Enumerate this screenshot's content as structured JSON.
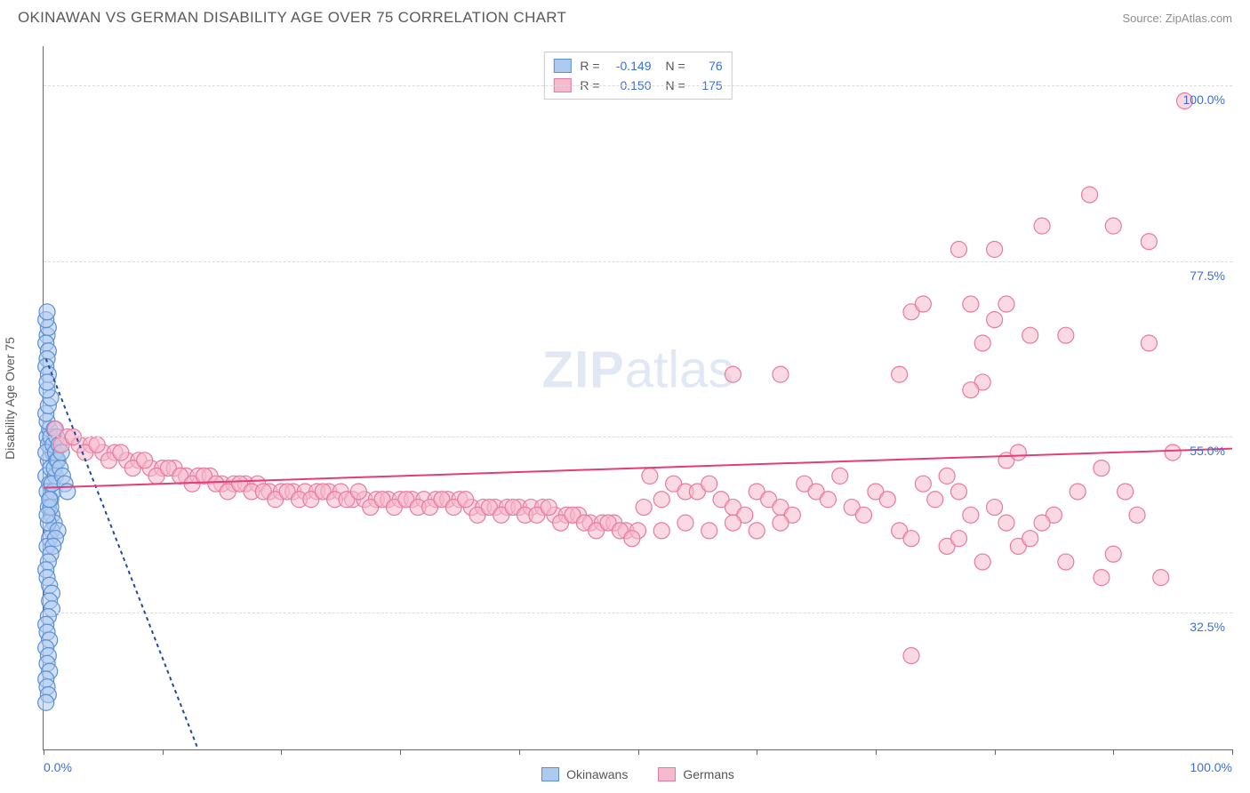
{
  "header": {
    "title": "OKINAWAN VS GERMAN DISABILITY AGE OVER 75 CORRELATION CHART",
    "source": "Source: ZipAtlas.com"
  },
  "watermark": {
    "text_a": "ZIP",
    "text_b": "atlas"
  },
  "chart": {
    "type": "scatter",
    "y_axis_label": "Disability Age Over 75",
    "background_color": "#ffffff",
    "grid_color": "#d9dadb",
    "axis_color": "#666666",
    "tick_label_color": "#3b6fd6",
    "xlim": [
      0,
      100
    ],
    "ylim": [
      15,
      105
    ],
    "x_ticks": [
      0,
      10,
      20,
      30,
      40,
      50,
      60,
      70,
      80,
      90,
      100
    ],
    "x_tick_labels": {
      "0": "0.0%",
      "100": "100.0%"
    },
    "y_gridlines": [
      32.5,
      55.0,
      77.5,
      100.0
    ],
    "y_tick_labels": [
      "32.5%",
      "55.0%",
      "77.5%",
      "100.0%"
    ],
    "marker_radius": 9,
    "marker_stroke_width": 1.2,
    "trend_line_width": 2,
    "series": [
      {
        "name": "Okinawans",
        "fill_color": "#aecbef",
        "stroke_color": "#5a8fd6",
        "fill_opacity": 0.55,
        "trend_color": "#1e4b9e",
        "trend_dash": "4 4",
        "trend": {
          "x1": 0.2,
          "y1": 65,
          "x2": 13,
          "y2": 15
        },
        "points": [
          [
            0.3,
            55
          ],
          [
            0.4,
            52
          ],
          [
            0.2,
            50
          ],
          [
            0.5,
            49
          ],
          [
            0.3,
            48
          ],
          [
            0.6,
            47
          ],
          [
            0.4,
            46
          ],
          [
            0.7,
            45
          ],
          [
            0.5,
            56
          ],
          [
            0.3,
            57
          ],
          [
            0.8,
            53
          ],
          [
            0.6,
            51
          ],
          [
            0.4,
            54
          ],
          [
            0.2,
            53
          ],
          [
            0.9,
            44
          ],
          [
            0.7,
            43
          ],
          [
            0.5,
            42
          ],
          [
            0.3,
            41
          ],
          [
            1.0,
            50
          ],
          [
            0.8,
            48
          ],
          [
            0.6,
            46
          ],
          [
            0.4,
            44
          ],
          [
            1.1,
            52
          ],
          [
            0.9,
            51
          ],
          [
            0.7,
            49
          ],
          [
            0.5,
            47
          ],
          [
            0.3,
            45
          ],
          [
            1.2,
            43
          ],
          [
            1.0,
            42
          ],
          [
            0.8,
            41
          ],
          [
            0.6,
            40
          ],
          [
            0.4,
            39
          ],
          [
            0.2,
            38
          ],
          [
            0.3,
            37
          ],
          [
            0.5,
            36
          ],
          [
            0.7,
            35
          ],
          [
            0.2,
            58
          ],
          [
            0.4,
            59
          ],
          [
            0.6,
            60
          ],
          [
            0.3,
            61
          ],
          [
            0.5,
            34
          ],
          [
            0.7,
            33
          ],
          [
            0.4,
            32
          ],
          [
            0.2,
            31
          ],
          [
            0.3,
            30
          ],
          [
            0.5,
            29
          ],
          [
            0.2,
            28
          ],
          [
            0.4,
            27
          ],
          [
            0.3,
            26
          ],
          [
            0.5,
            25
          ],
          [
            0.2,
            24
          ],
          [
            0.3,
            23
          ],
          [
            0.4,
            22
          ],
          [
            0.2,
            21
          ],
          [
            0.3,
            68
          ],
          [
            0.4,
            69
          ],
          [
            0.2,
            70
          ],
          [
            0.3,
            71
          ],
          [
            0.2,
            67
          ],
          [
            0.4,
            66
          ],
          [
            0.3,
            65
          ],
          [
            0.2,
            64
          ],
          [
            0.4,
            63
          ],
          [
            0.3,
            62
          ],
          [
            0.6,
            55
          ],
          [
            0.8,
            54
          ],
          [
            1.0,
            53
          ],
          [
            1.2,
            52
          ],
          [
            1.4,
            51
          ],
          [
            1.6,
            50
          ],
          [
            1.8,
            49
          ],
          [
            2.0,
            48
          ],
          [
            0.9,
            56
          ],
          [
            1.1,
            55
          ],
          [
            1.3,
            54
          ],
          [
            1.5,
            53
          ]
        ]
      },
      {
        "name": "Germans",
        "fill_color": "#f7b9cc",
        "stroke_color": "#e77aa0",
        "fill_opacity": 0.55,
        "trend_color": "#e23d7a",
        "trend_dash": "",
        "trend": {
          "x1": 0,
          "y1": 48.5,
          "x2": 100,
          "y2": 53.5
        },
        "points": [
          [
            1,
            56
          ],
          [
            2,
            55
          ],
          [
            3,
            54
          ],
          [
            4,
            54
          ],
          [
            5,
            53
          ],
          [
            6,
            53
          ],
          [
            7,
            52
          ],
          [
            8,
            52
          ],
          [
            9,
            51
          ],
          [
            10,
            51
          ],
          [
            11,
            51
          ],
          [
            12,
            50
          ],
          [
            13,
            50
          ],
          [
            14,
            50
          ],
          [
            15,
            49
          ],
          [
            16,
            49
          ],
          [
            17,
            49
          ],
          [
            18,
            49
          ],
          [
            19,
            48
          ],
          [
            20,
            48
          ],
          [
            21,
            48
          ],
          [
            22,
            48
          ],
          [
            23,
            48
          ],
          [
            24,
            48
          ],
          [
            25,
            48
          ],
          [
            26,
            47
          ],
          [
            27,
            47
          ],
          [
            28,
            47
          ],
          [
            29,
            47
          ],
          [
            30,
            47
          ],
          [
            31,
            47
          ],
          [
            32,
            47
          ],
          [
            33,
            47
          ],
          [
            34,
            47
          ],
          [
            35,
            47
          ],
          [
            36,
            46
          ],
          [
            37,
            46
          ],
          [
            38,
            46
          ],
          [
            39,
            46
          ],
          [
            40,
            46
          ],
          [
            41,
            46
          ],
          [
            42,
            46
          ],
          [
            43,
            45
          ],
          [
            44,
            45
          ],
          [
            45,
            45
          ],
          [
            46,
            44
          ],
          [
            47,
            44
          ],
          [
            48,
            44
          ],
          [
            49,
            43
          ],
          [
            50,
            43
          ],
          [
            1.5,
            54
          ],
          [
            2.5,
            55
          ],
          [
            3.5,
            53
          ],
          [
            4.5,
            54
          ],
          [
            5.5,
            52
          ],
          [
            6.5,
            53
          ],
          [
            7.5,
            51
          ],
          [
            8.5,
            52
          ],
          [
            9.5,
            50
          ],
          [
            10.5,
            51
          ],
          [
            11.5,
            50
          ],
          [
            12.5,
            49
          ],
          [
            13.5,
            50
          ],
          [
            14.5,
            49
          ],
          [
            15.5,
            48
          ],
          [
            16.5,
            49
          ],
          [
            17.5,
            48
          ],
          [
            18.5,
            48
          ],
          [
            19.5,
            47
          ],
          [
            20.5,
            48
          ],
          [
            21.5,
            47
          ],
          [
            22.5,
            47
          ],
          [
            23.5,
            48
          ],
          [
            24.5,
            47
          ],
          [
            25.5,
            47
          ],
          [
            26.5,
            48
          ],
          [
            27.5,
            46
          ],
          [
            28.5,
            47
          ],
          [
            29.5,
            46
          ],
          [
            30.5,
            47
          ],
          [
            31.5,
            46
          ],
          [
            32.5,
            46
          ],
          [
            33.5,
            47
          ],
          [
            34.5,
            46
          ],
          [
            35.5,
            47
          ],
          [
            36.5,
            45
          ],
          [
            37.5,
            46
          ],
          [
            38.5,
            45
          ],
          [
            39.5,
            46
          ],
          [
            40.5,
            45
          ],
          [
            41.5,
            45
          ],
          [
            42.5,
            46
          ],
          [
            43.5,
            44
          ],
          [
            44.5,
            45
          ],
          [
            45.5,
            44
          ],
          [
            46.5,
            43
          ],
          [
            47.5,
            44
          ],
          [
            48.5,
            43
          ],
          [
            49.5,
            42
          ],
          [
            50.5,
            46
          ],
          [
            51,
            50
          ],
          [
            52,
            47
          ],
          [
            53,
            49
          ],
          [
            54,
            48
          ],
          [
            55,
            48
          ],
          [
            56,
            49
          ],
          [
            57,
            47
          ],
          [
            58,
            46
          ],
          [
            59,
            45
          ],
          [
            60,
            48
          ],
          [
            61,
            47
          ],
          [
            62,
            46
          ],
          [
            63,
            45
          ],
          [
            64,
            49
          ],
          [
            65,
            48
          ],
          [
            66,
            47
          ],
          [
            67,
            50
          ],
          [
            68,
            46
          ],
          [
            69,
            45
          ],
          [
            70,
            48
          ],
          [
            71,
            47
          ],
          [
            72,
            43
          ],
          [
            73,
            42
          ],
          [
            74,
            49
          ],
          [
            75,
            47
          ],
          [
            76,
            50
          ],
          [
            77,
            48
          ],
          [
            78,
            45
          ],
          [
            79,
            62
          ],
          [
            80,
            46
          ],
          [
            81,
            44
          ],
          [
            58,
            63
          ],
          [
            62,
            63
          ],
          [
            72,
            63
          ],
          [
            73,
            71
          ],
          [
            74,
            72
          ],
          [
            77,
            79
          ],
          [
            78,
            72
          ],
          [
            80,
            79
          ],
          [
            78,
            61
          ],
          [
            79,
            67
          ],
          [
            80,
            70
          ],
          [
            81,
            72
          ],
          [
            82,
            41
          ],
          [
            83,
            68
          ],
          [
            84,
            82
          ],
          [
            85,
            45
          ],
          [
            86,
            68
          ],
          [
            87,
            48
          ],
          [
            88,
            86
          ],
          [
            89,
            37
          ],
          [
            90,
            82
          ],
          [
            91,
            48
          ],
          [
            92,
            45
          ],
          [
            93,
            67
          ],
          [
            94,
            37
          ],
          [
            95,
            53
          ],
          [
            96,
            98
          ],
          [
            73,
            27
          ],
          [
            79,
            39
          ],
          [
            86,
            39
          ],
          [
            93,
            80
          ],
          [
            83,
            42
          ],
          [
            89,
            51
          ],
          [
            90,
            40
          ],
          [
            84,
            44
          ],
          [
            76,
            41
          ],
          [
            77,
            42
          ],
          [
            81,
            52
          ],
          [
            82,
            53
          ],
          [
            58,
            44
          ],
          [
            60,
            43
          ],
          [
            62,
            44
          ],
          [
            52,
            43
          ],
          [
            54,
            44
          ],
          [
            56,
            43
          ]
        ]
      }
    ],
    "stats_legend": [
      {
        "swatch_fill": "#aecbef",
        "swatch_stroke": "#5a8fd6",
        "r_label": "R =",
        "r_value": "-0.149",
        "n_label": "N =",
        "n_value": "76"
      },
      {
        "swatch_fill": "#f7b9cc",
        "swatch_stroke": "#e77aa0",
        "r_label": "R =",
        "r_value": "0.150",
        "n_label": "N =",
        "n_value": "175"
      }
    ],
    "bottom_legend": [
      {
        "swatch_fill": "#aecbef",
        "swatch_stroke": "#5a8fd6",
        "label": "Okinawans"
      },
      {
        "swatch_fill": "#f7b9cc",
        "swatch_stroke": "#e77aa0",
        "label": "Germans"
      }
    ]
  }
}
